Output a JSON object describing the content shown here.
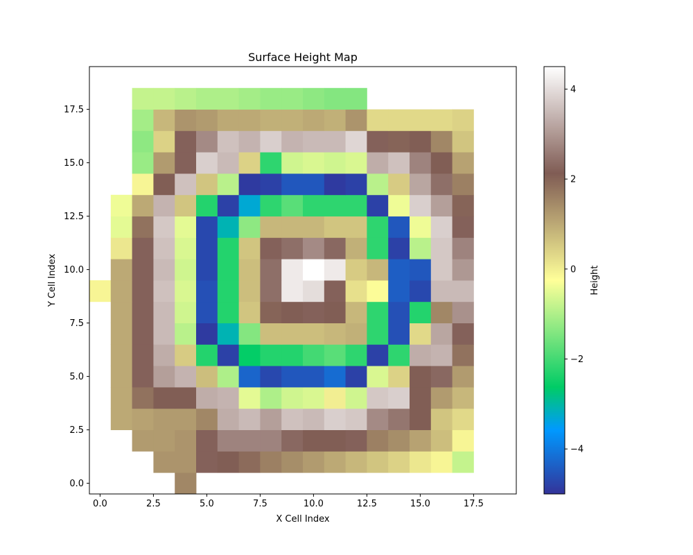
{
  "chart_data": {
    "type": "heatmap",
    "title": "Surface Height Map",
    "xlabel": "X Cell Index",
    "ylabel": "Y Cell Index",
    "xlim": [
      -0.5,
      19.5
    ],
    "ylim": [
      -0.5,
      19.5
    ],
    "x_ticks": [
      0.0,
      2.5,
      5.0,
      7.5,
      10.0,
      12.5,
      15.0,
      17.5
    ],
    "x_tick_labels": [
      "0.0",
      "2.5",
      "5.0",
      "7.5",
      "10.0",
      "12.5",
      "15.0",
      "17.5"
    ],
    "y_ticks": [
      0.0,
      2.5,
      5.0,
      7.5,
      10.0,
      12.5,
      15.0,
      17.5
    ],
    "y_tick_labels": [
      "0.0",
      "2.5",
      "5.0",
      "7.5",
      "10.0",
      "12.5",
      "15.0",
      "17.5"
    ],
    "colorbar": {
      "label": "Height",
      "vmin": -5,
      "vmax": 4.5,
      "ticks": [
        4,
        2,
        0,
        -2,
        -4
      ],
      "tick_labels": [
        "4",
        "2",
        "0",
        "−2",
        "−4"
      ],
      "colormap": "terrain"
    },
    "grid": false,
    "row_order": "y from 0 (bottom) to 18 (top); value null = no cell",
    "values": [
      [
        null,
        null,
        null,
        null,
        1.5,
        null,
        null,
        null,
        null,
        null,
        null,
        null,
        null,
        null,
        null,
        null,
        null,
        null
      ],
      [
        null,
        null,
        null,
        1.3,
        1.3,
        2.2,
        2.1,
        1.9,
        1.6,
        1.4,
        1.2,
        1.0,
        0.8,
        0.6,
        0.4,
        0.1,
        -0.1,
        -0.8
      ],
      [
        null,
        null,
        1.2,
        1.2,
        1.3,
        2.2,
        2.7,
        2.7,
        2.7,
        2.3,
        2.1,
        2.1,
        2.2,
        1.6,
        1.4,
        1.1,
        0.7,
        -0.1
      ],
      [
        null,
        1.0,
        1.1,
        1.2,
        1.2,
        1.5,
        3.3,
        3.5,
        3.1,
        3.6,
        3.5,
        3.8,
        3.7,
        2.8,
        2.5,
        2.1,
        0.6,
        0.3
      ],
      [
        null,
        1.0,
        1.8,
        2.1,
        2.1,
        3.3,
        3.4,
        -0.5,
        -1.0,
        -0.7,
        -0.6,
        0.0,
        -0.7,
        3.7,
        3.8,
        2.1,
        1.2,
        0.8
      ],
      [
        null,
        1.0,
        2.2,
        3.1,
        3.4,
        0.7,
        -1.0,
        -4.3,
        -4.7,
        -4.5,
        -4.5,
        -4.2,
        -4.8,
        -0.6,
        0.4,
        2.1,
        2.3,
        1.2
      ],
      [
        null,
        1.0,
        2.2,
        3.3,
        0.5,
        -2.3,
        -4.8,
        -2.6,
        -2.3,
        -2.3,
        -2.0,
        -1.8,
        -2.2,
        -4.8,
        -2.2,
        3.3,
        3.4,
        1.8
      ],
      [
        null,
        1.0,
        2.2,
        3.5,
        -0.9,
        -4.9,
        -3.1,
        -1.4,
        0.7,
        0.7,
        0.7,
        0.8,
        0.9,
        -2.2,
        -4.6,
        0.3,
        3.2,
        2.2
      ],
      [
        null,
        1.0,
        2.2,
        3.5,
        -0.7,
        -4.6,
        -2.3,
        0.6,
        2.0,
        2.1,
        2.2,
        2.1,
        0.8,
        -2.2,
        -4.6,
        -2.3,
        1.5,
        2.9
      ],
      [
        -0.1,
        1.0,
        2.2,
        3.6,
        -0.6,
        -4.6,
        -2.3,
        0.7,
        2.4,
        4.2,
        4.0,
        2.2,
        0.2,
        -0.2,
        -4.4,
        -4.7,
        3.5,
        3.5
      ],
      [
        null,
        1.0,
        2.2,
        3.5,
        -0.7,
        -4.7,
        -2.3,
        0.7,
        2.4,
        4.2,
        4.5,
        4.2,
        0.5,
        0.8,
        -4.4,
        -4.5,
        3.7,
        3.0
      ],
      [
        null,
        0.1,
        2.2,
        3.6,
        -0.6,
        -4.7,
        -2.3,
        0.6,
        2.2,
        2.4,
        2.8,
        2.3,
        0.9,
        -2.2,
        -4.8,
        -0.9,
        3.7,
        2.7
      ],
      [
        null,
        -0.5,
        1.8,
        3.7,
        -0.5,
        -4.7,
        -3.1,
        -1.3,
        0.8,
        0.8,
        0.8,
        0.6,
        0.6,
        -2.2,
        -4.5,
        -0.4,
        3.8,
        2.2
      ],
      [
        null,
        -0.4,
        1.0,
        3.4,
        0.6,
        -2.3,
        -4.8,
        -3.3,
        -2.2,
        -1.8,
        -2.2,
        -2.2,
        -2.2,
        -4.8,
        -0.4,
        3.8,
        3.1,
        2.0
      ],
      [
        null,
        null,
        -0.1,
        2.1,
        3.6,
        0.6,
        -0.9,
        -4.9,
        -4.8,
        -4.5,
        -4.5,
        -4.9,
        -4.8,
        -0.9,
        0.5,
        3.2,
        2.4,
        1.6
      ],
      [
        null,
        null,
        -1.2,
        1.2,
        2.2,
        3.8,
        3.5,
        0.4,
        -2.2,
        -0.7,
        -0.6,
        -0.7,
        -0.6,
        3.3,
        3.6,
        2.7,
        2.1,
        1.1
      ],
      [
        null,
        null,
        -1.3,
        0.4,
        2.2,
        2.8,
        3.6,
        3.4,
        3.8,
        3.4,
        3.5,
        3.5,
        3.9,
        2.2,
        2.0,
        2.1,
        1.5,
        0.6
      ],
      [
        null,
        null,
        -1.1,
        0.8,
        1.3,
        1.2,
        1.0,
        1.0,
        0.9,
        0.9,
        1.0,
        0.9,
        1.3,
        0.3,
        0.3,
        0.3,
        0.3,
        0.4
      ],
      [
        null,
        null,
        -0.8,
        -0.8,
        -0.9,
        -1.0,
        -1.0,
        -1.1,
        -1.2,
        -1.2,
        -1.3,
        -1.4,
        -1.4,
        null,
        null,
        null,
        null,
        null
      ]
    ]
  }
}
